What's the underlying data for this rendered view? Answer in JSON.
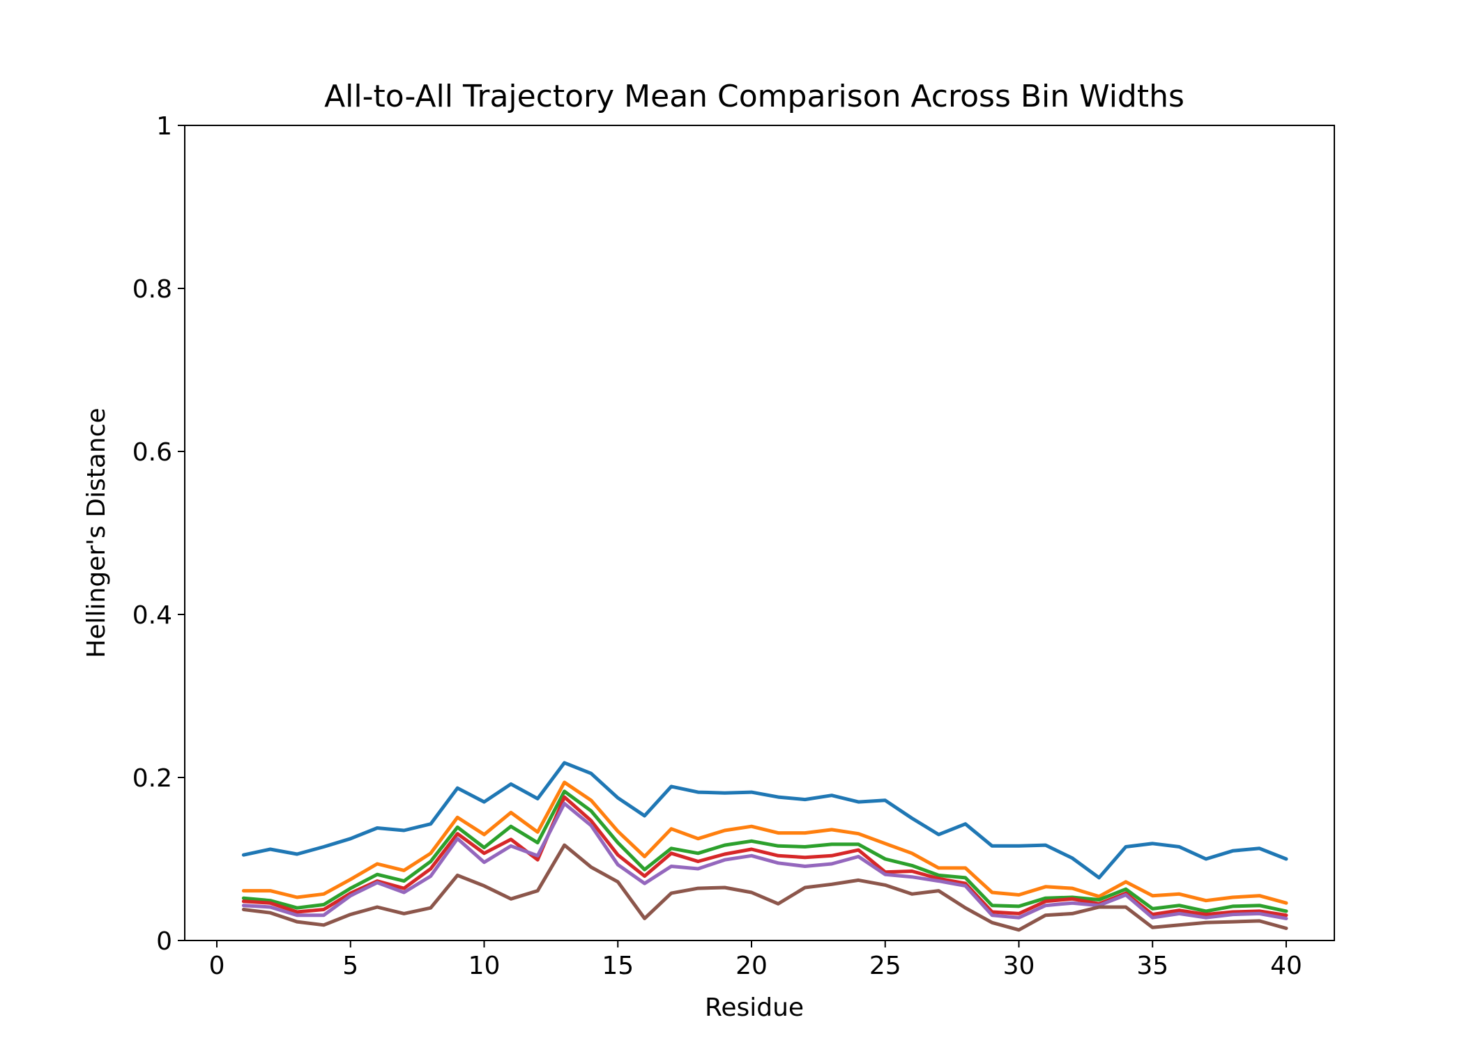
{
  "chart_data": {
    "type": "line",
    "title": "All-to-All Trajectory Mean Comparison Across Bin Widths",
    "xlabel": "Residue",
    "ylabel": "Hellinger's Distance",
    "xlim": [
      -1.2,
      41.8
    ],
    "ylim": [
      0,
      1
    ],
    "xticks": [
      0,
      5,
      10,
      15,
      20,
      25,
      30,
      35,
      40
    ],
    "xtick_labels": [
      "0",
      "5",
      "10",
      "15",
      "20",
      "25",
      "30",
      "35",
      "40"
    ],
    "yticks": [
      0,
      0.2,
      0.4,
      0.6,
      0.8,
      1
    ],
    "ytick_labels": [
      "0",
      "0.2",
      "0.4",
      "0.6",
      "0.8",
      "1"
    ],
    "grid": false,
    "legend": false,
    "x": [
      1,
      2,
      3,
      4,
      5,
      6,
      7,
      8,
      9,
      10,
      11,
      12,
      13,
      14,
      15,
      16,
      17,
      18,
      19,
      20,
      21,
      22,
      23,
      24,
      25,
      26,
      27,
      28,
      29,
      30,
      31,
      32,
      33,
      34,
      35,
      36,
      37,
      38,
      39,
      40
    ],
    "series": [
      {
        "color": "#1f77b4",
        "values": [
          0.105,
          0.112,
          0.106,
          0.115,
          0.125,
          0.138,
          0.135,
          0.143,
          0.187,
          0.17,
          0.192,
          0.174,
          0.218,
          0.205,
          0.175,
          0.153,
          0.189,
          0.182,
          0.181,
          0.182,
          0.176,
          0.173,
          0.178,
          0.17,
          0.172,
          0.15,
          0.13,
          0.143,
          0.116,
          0.116,
          0.117,
          0.101,
          0.077,
          0.115,
          0.119,
          0.115,
          0.1,
          0.11,
          0.113,
          0.1
        ]
      },
      {
        "color": "#ff7f0e",
        "values": [
          0.061,
          0.061,
          0.053,
          0.057,
          0.075,
          0.094,
          0.086,
          0.107,
          0.151,
          0.13,
          0.157,
          0.133,
          0.194,
          0.172,
          0.134,
          0.103,
          0.137,
          0.125,
          0.135,
          0.14,
          0.132,
          0.132,
          0.136,
          0.131,
          0.119,
          0.107,
          0.089,
          0.089,
          0.059,
          0.056,
          0.066,
          0.064,
          0.054,
          0.072,
          0.055,
          0.057,
          0.049,
          0.053,
          0.055,
          0.046
        ]
      },
      {
        "color": "#2ca02c",
        "values": [
          0.052,
          0.049,
          0.04,
          0.044,
          0.064,
          0.081,
          0.073,
          0.097,
          0.139,
          0.114,
          0.14,
          0.12,
          0.183,
          0.159,
          0.12,
          0.087,
          0.113,
          0.107,
          0.117,
          0.122,
          0.116,
          0.115,
          0.118,
          0.118,
          0.1,
          0.092,
          0.08,
          0.077,
          0.043,
          0.042,
          0.052,
          0.053,
          0.05,
          0.063,
          0.039,
          0.043,
          0.036,
          0.042,
          0.043,
          0.036
        ]
      },
      {
        "color": "#d62728",
        "values": [
          0.048,
          0.046,
          0.035,
          0.038,
          0.058,
          0.073,
          0.064,
          0.088,
          0.131,
          0.107,
          0.124,
          0.099,
          0.176,
          0.147,
          0.105,
          0.079,
          0.107,
          0.097,
          0.106,
          0.112,
          0.104,
          0.102,
          0.104,
          0.111,
          0.084,
          0.085,
          0.076,
          0.07,
          0.035,
          0.033,
          0.048,
          0.051,
          0.045,
          0.058,
          0.032,
          0.037,
          0.032,
          0.035,
          0.036,
          0.031
        ]
      },
      {
        "color": "#9467bd",
        "values": [
          0.043,
          0.041,
          0.031,
          0.031,
          0.055,
          0.071,
          0.059,
          0.079,
          0.125,
          0.096,
          0.116,
          0.104,
          0.168,
          0.141,
          0.093,
          0.07,
          0.091,
          0.088,
          0.099,
          0.104,
          0.095,
          0.091,
          0.094,
          0.103,
          0.081,
          0.078,
          0.073,
          0.067,
          0.031,
          0.028,
          0.043,
          0.046,
          0.043,
          0.056,
          0.028,
          0.033,
          0.028,
          0.032,
          0.033,
          0.027
        ]
      },
      {
        "color": "#8c564b",
        "values": [
          0.038,
          0.034,
          0.023,
          0.019,
          0.032,
          0.041,
          0.033,
          0.04,
          0.08,
          0.067,
          0.051,
          0.061,
          0.117,
          0.09,
          0.072,
          0.027,
          0.058,
          0.064,
          0.065,
          0.059,
          0.045,
          0.065,
          0.069,
          0.074,
          0.068,
          0.057,
          0.061,
          0.04,
          0.022,
          0.013,
          0.031,
          0.033,
          0.041,
          0.041,
          0.016,
          0.019,
          0.022,
          0.023,
          0.024,
          0.015
        ]
      }
    ]
  }
}
